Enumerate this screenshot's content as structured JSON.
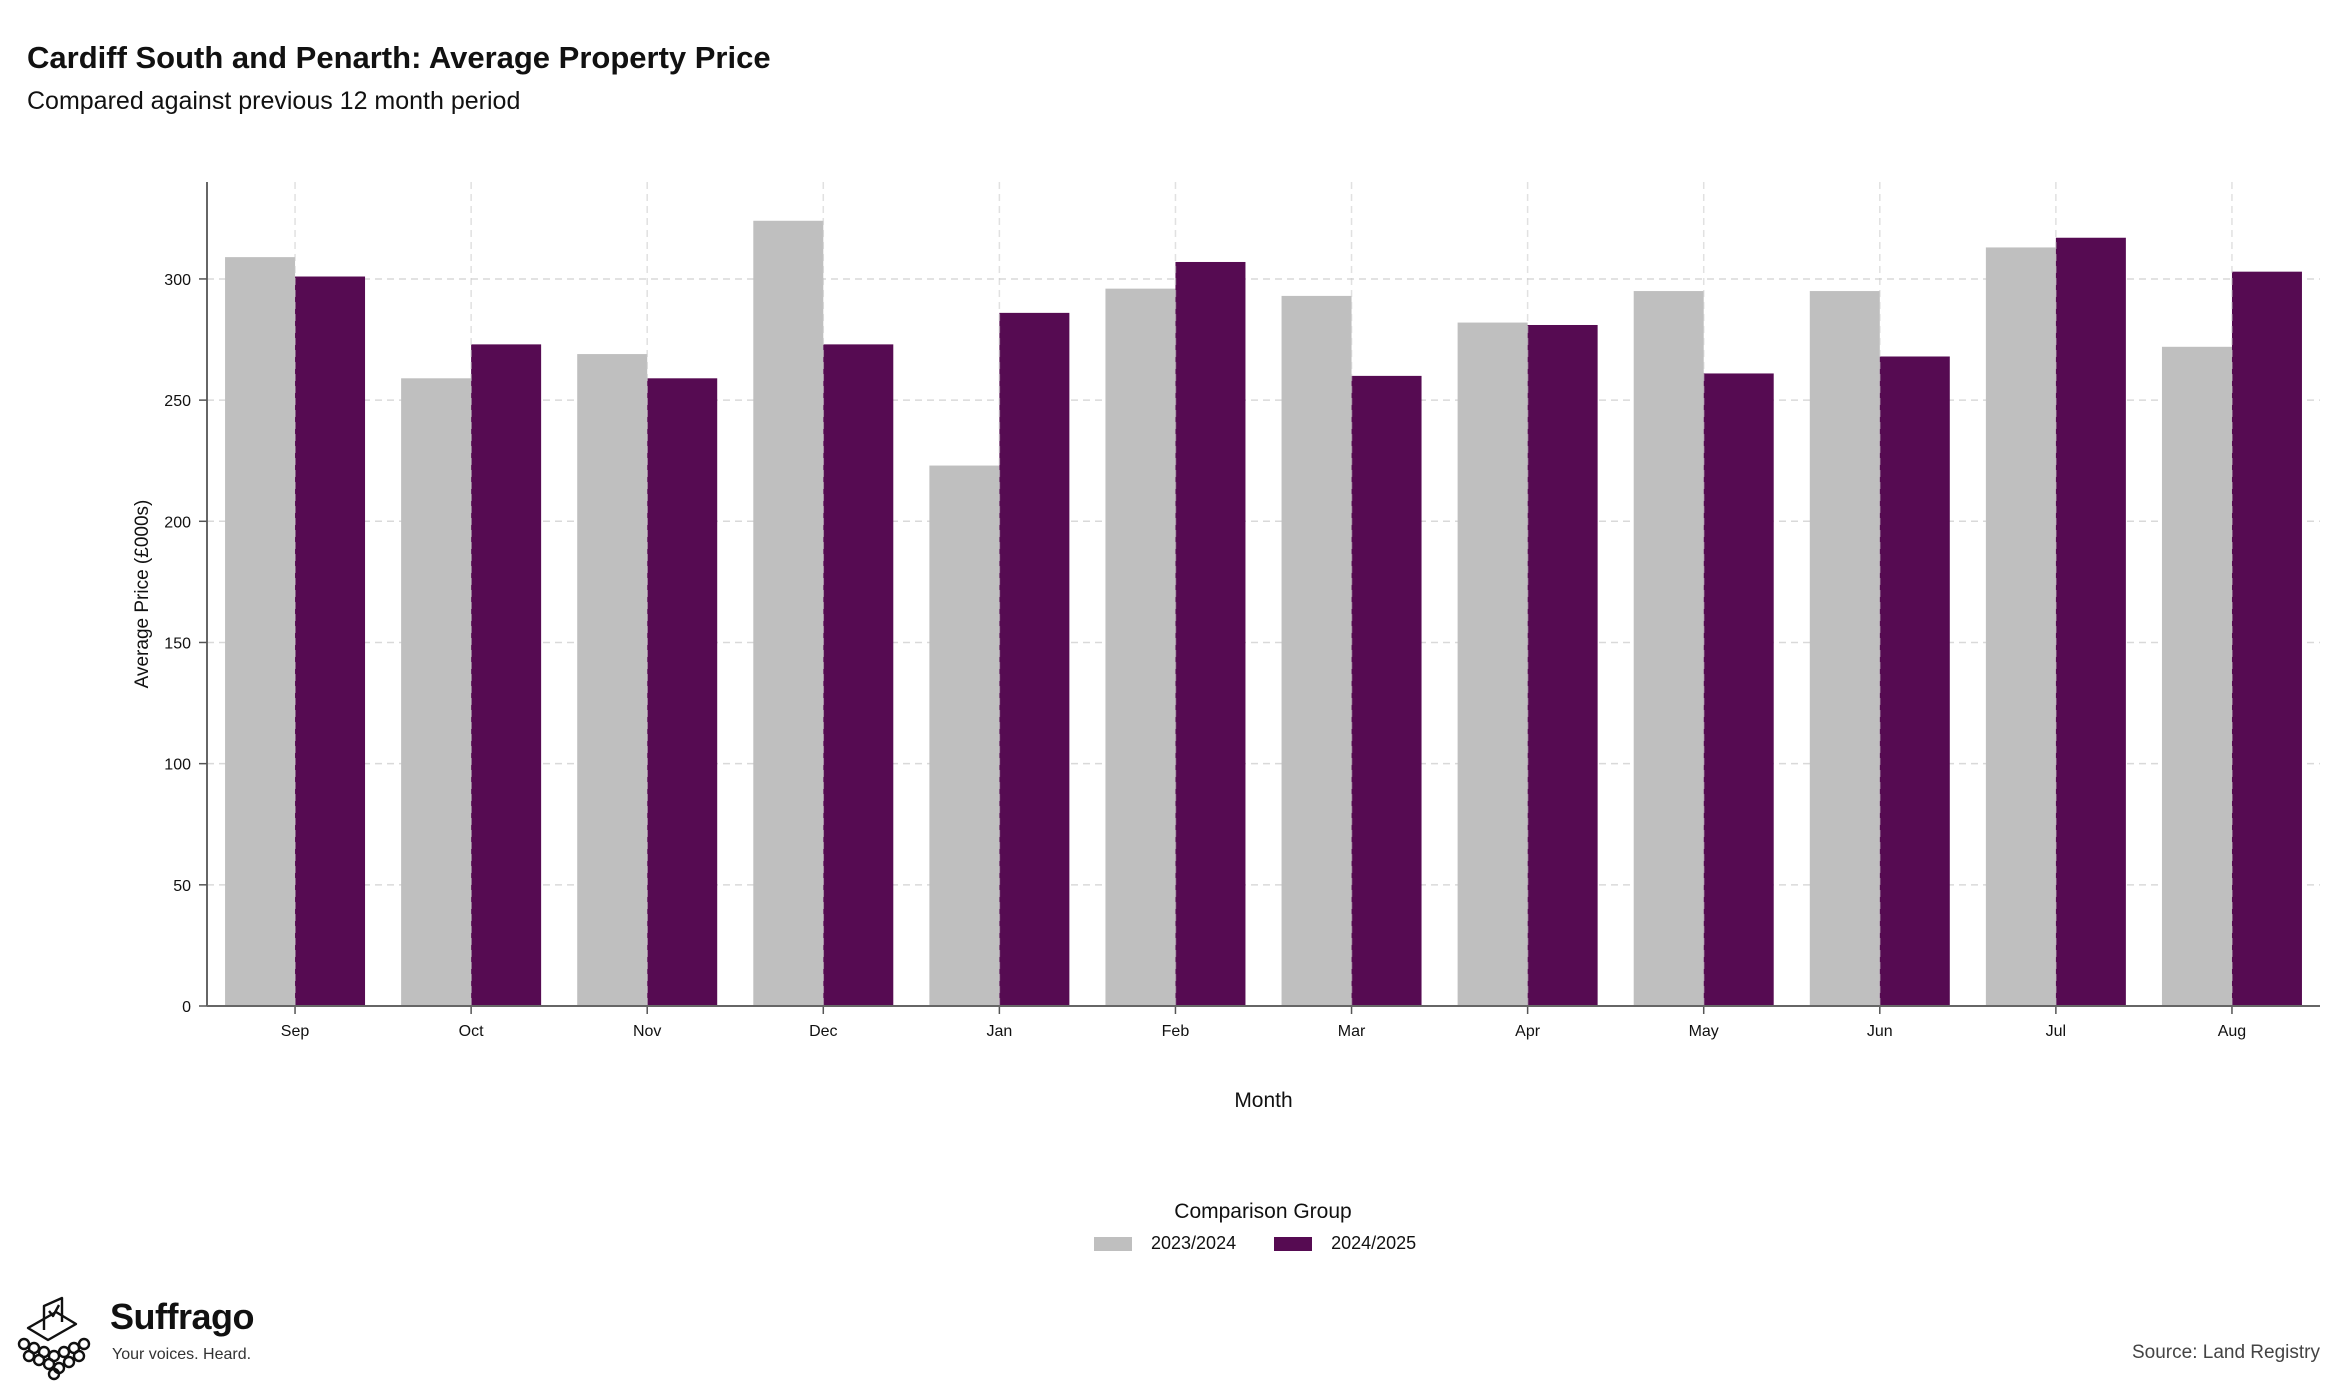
{
  "header": {
    "title": "Cardiff South and Penarth: Average Property Price",
    "subtitle": "Compared against previous 12 month period"
  },
  "legend": {
    "title": "Comparison Group",
    "items": [
      {
        "label": "2023/2024",
        "color": "#bfbfbf"
      },
      {
        "label": "2024/2025",
        "color": "#560b52"
      }
    ]
  },
  "footer": {
    "brand": "Suffrago",
    "tagline": "Your voices. Heard.",
    "source": "Source: Land Registry"
  },
  "chart_data": {
    "type": "bar",
    "xlabel": "Month",
    "ylabel": "Average Price (£000s)",
    "ylim": [
      0,
      340
    ],
    "yticks": [
      0,
      50,
      100,
      150,
      200,
      250,
      300
    ],
    "grid": true,
    "legend_position": "bottom",
    "categories": [
      "Sep",
      "Oct",
      "Nov",
      "Dec",
      "Jan",
      "Feb",
      "Mar",
      "Apr",
      "May",
      "Jun",
      "Jul",
      "Aug"
    ],
    "series": [
      {
        "name": "2023/2024",
        "color": "#bfbfbf",
        "values": [
          309,
          259,
          269,
          324,
          223,
          296,
          293,
          282,
          295,
          295,
          313,
          272
        ]
      },
      {
        "name": "2024/2025",
        "color": "#560b52",
        "values": [
          301,
          273,
          259,
          273,
          286,
          307,
          260,
          281,
          261,
          268,
          317,
          303
        ]
      }
    ]
  }
}
